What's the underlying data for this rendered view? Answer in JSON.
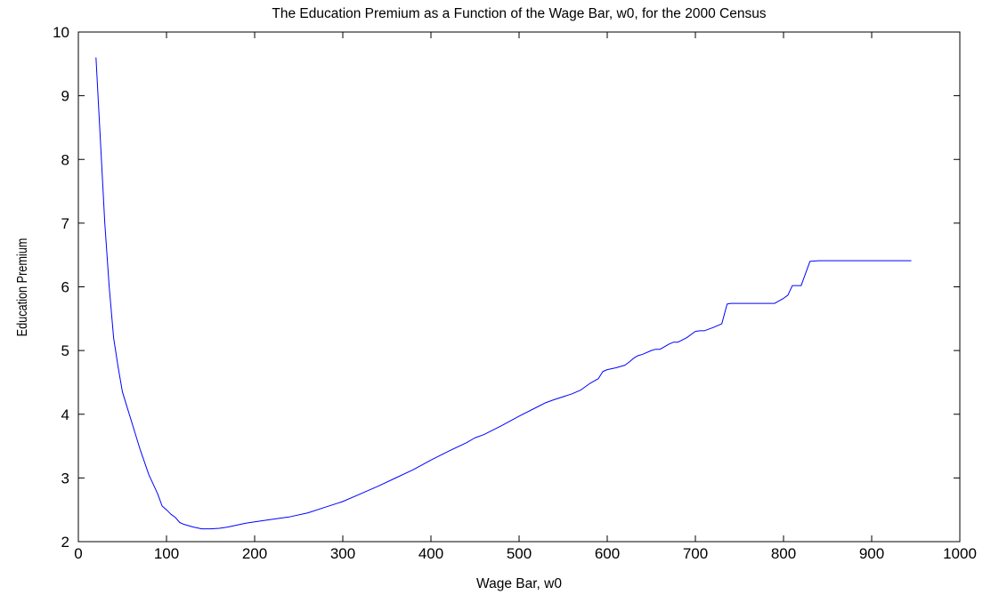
{
  "chart_data": {
    "type": "line",
    "title": "The Education Premium as a Function of the Wage Bar, w0, for the 2000 Census",
    "xlabel": "Wage Bar, w0",
    "ylabel": "Education Premium",
    "xlim": [
      0,
      1000
    ],
    "ylim": [
      2,
      10
    ],
    "xticks": [
      "0",
      "100",
      "200",
      "300",
      "400",
      "500",
      "600",
      "700",
      "800",
      "900",
      "1000"
    ],
    "yticks": [
      "2",
      "3",
      "4",
      "5",
      "6",
      "7",
      "8",
      "9",
      "10"
    ],
    "xtick_values": [
      0,
      100,
      200,
      300,
      400,
      500,
      600,
      700,
      800,
      900,
      1000
    ],
    "ytick_values": [
      2,
      3,
      4,
      5,
      6,
      7,
      8,
      9,
      10
    ],
    "grid": false,
    "line_color": "#0000ff",
    "series": [
      {
        "x": [
          20,
          25,
          30,
          35,
          40,
          45,
          50,
          60,
          70,
          80,
          90,
          95,
          100,
          105,
          110,
          115,
          120,
          130,
          140,
          150,
          160,
          170,
          180,
          190,
          200,
          220,
          240,
          260,
          280,
          300,
          320,
          340,
          360,
          380,
          400,
          420,
          440,
          450,
          460,
          480,
          500,
          520,
          530,
          540,
          560,
          570,
          580,
          590,
          595,
          600,
          610,
          620,
          625,
          630,
          635,
          640,
          650,
          655,
          660,
          670,
          675,
          680,
          690,
          700,
          705,
          710,
          720,
          730,
          736,
          740,
          760,
          780,
          790,
          800,
          805,
          810,
          820,
          830,
          840,
          860,
          880,
          900,
          920,
          945
        ],
        "y": [
          9.6,
          8.3,
          7.0,
          6.0,
          5.2,
          4.75,
          4.35,
          3.9,
          3.45,
          3.05,
          2.75,
          2.56,
          2.5,
          2.43,
          2.38,
          2.3,
          2.27,
          2.23,
          2.2,
          2.2,
          2.21,
          2.23,
          2.26,
          2.29,
          2.31,
          2.35,
          2.39,
          2.45,
          2.54,
          2.63,
          2.75,
          2.87,
          3.0,
          3.13,
          3.28,
          3.42,
          3.55,
          3.63,
          3.68,
          3.82,
          3.97,
          4.11,
          4.18,
          4.23,
          4.32,
          4.38,
          4.48,
          4.56,
          4.67,
          4.7,
          4.73,
          4.77,
          4.82,
          4.88,
          4.92,
          4.94,
          5.0,
          5.02,
          5.02,
          5.1,
          5.13,
          5.13,
          5.2,
          5.3,
          5.31,
          5.31,
          5.36,
          5.42,
          5.73,
          5.74,
          5.74,
          5.74,
          5.74,
          5.82,
          5.87,
          6.02,
          6.02,
          6.4,
          6.41,
          6.41,
          6.41,
          6.41,
          6.41,
          6.41
        ]
      }
    ]
  }
}
